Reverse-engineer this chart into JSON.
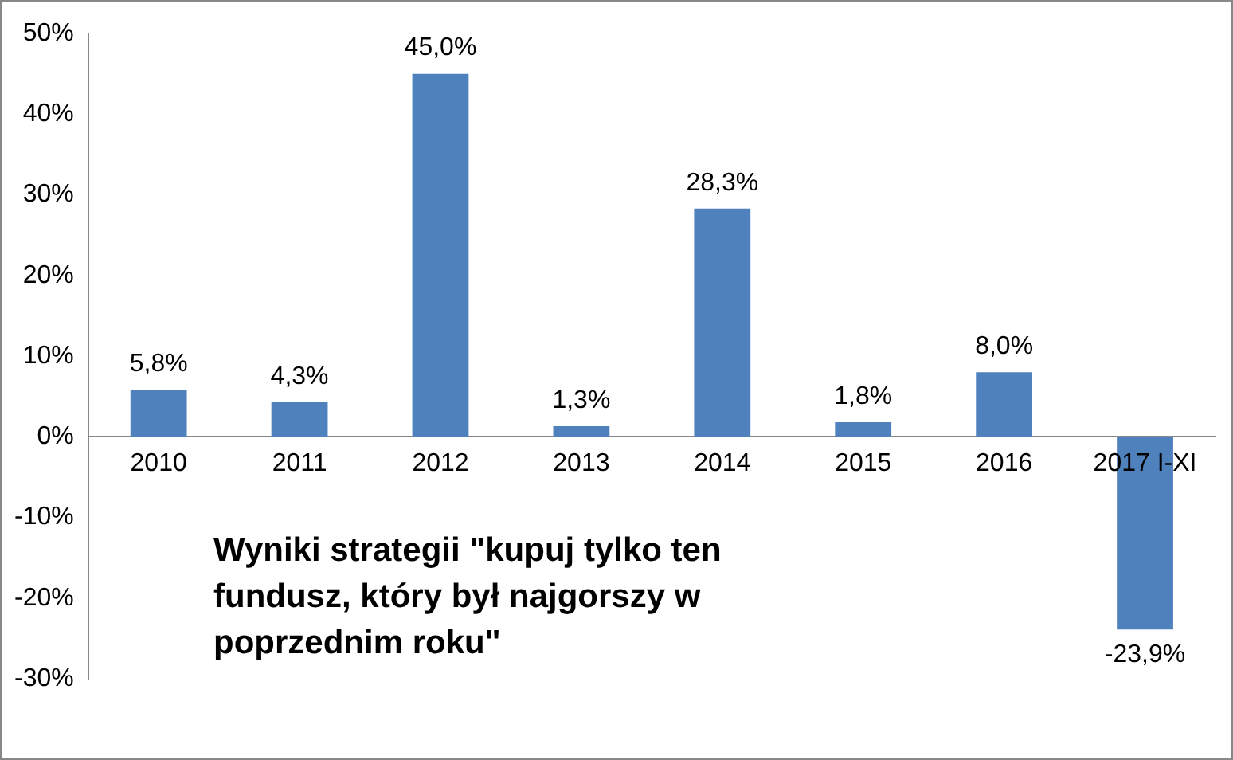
{
  "chart_data": {
    "type": "bar",
    "categories": [
      "2010",
      "2011",
      "2012",
      "2013",
      "2014",
      "2015",
      "2016",
      "2017 I-XI"
    ],
    "values": [
      5.8,
      4.3,
      45.0,
      1.3,
      28.3,
      1.8,
      8.0,
      -23.9
    ],
    "color": "#4f81bd",
    "value_labels": [
      "5,8%",
      "4,3%",
      "45,0%",
      "1,3%",
      "28,3%",
      "1,8%",
      "8,0%",
      "-23,9%"
    ],
    "ylim": [
      -30,
      50
    ],
    "yticks": [
      {
        "value": -30,
        "label": "-30%"
      },
      {
        "value": -20,
        "label": "-20%"
      },
      {
        "value": -10,
        "label": "-10%"
      },
      {
        "value": 0,
        "label": "0%"
      },
      {
        "value": 10,
        "label": "10%"
      },
      {
        "value": 20,
        "label": "20%"
      },
      {
        "value": 30,
        "label": "30%"
      },
      {
        "value": 40,
        "label": "40%"
      },
      {
        "value": 50,
        "label": "50%"
      }
    ],
    "grid": false,
    "legend": false,
    "annotations": [
      "Wyniki strategii \"kupuj tylko ten fundusz, który był najgorszy w poprzednim roku\""
    ]
  }
}
